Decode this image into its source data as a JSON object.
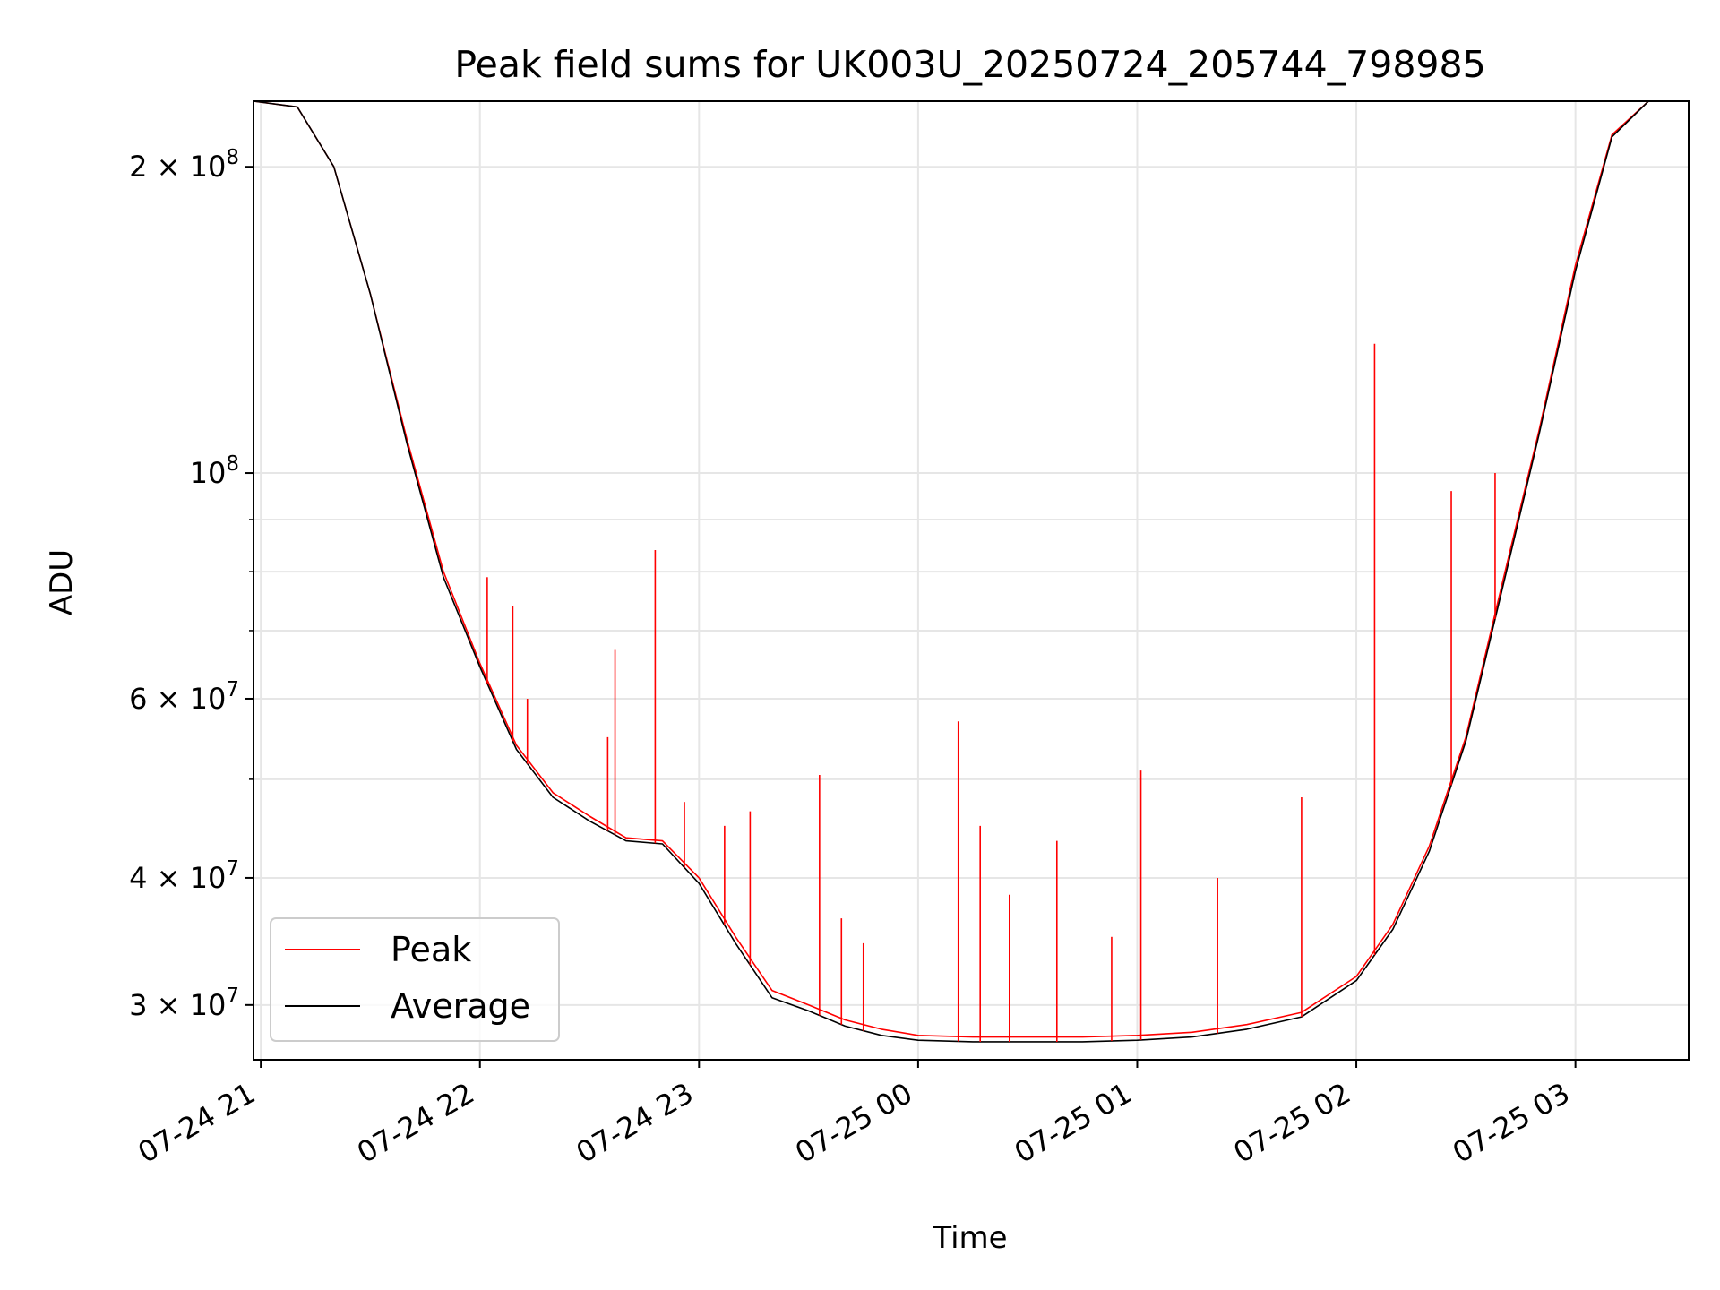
{
  "chart_data": {
    "type": "line",
    "title": "Peak field sums for UK003U_20250724_205744_798985",
    "xlabel": "Time",
    "ylabel": "ADU",
    "yscale": "log",
    "ylim": [
      26500000,
      232000000
    ],
    "xlim": [
      "2025-07-24 20:58",
      "2025-07-25 03:31"
    ],
    "grid": true,
    "legend_position": "lower-left",
    "x_ticks": [
      {
        "label": "07-24 21",
        "value": "2025-07-24 21:00"
      },
      {
        "label": "07-24 22",
        "value": "2025-07-24 22:00"
      },
      {
        "label": "07-24 23",
        "value": "2025-07-24 23:00"
      },
      {
        "label": "07-25 00",
        "value": "2025-07-25 00:00"
      },
      {
        "label": "07-25 01",
        "value": "2025-07-25 01:00"
      },
      {
        "label": "07-25 02",
        "value": "2025-07-25 02:00"
      },
      {
        "label": "07-25 03",
        "value": "2025-07-25 03:00"
      }
    ],
    "y_ticks": [
      {
        "mantissa": "3 × 10",
        "exp": "7",
        "value": 30000000
      },
      {
        "mantissa": "4 × 10",
        "exp": "7",
        "value": 40000000
      },
      {
        "mantissa": "6 × 10",
        "exp": "7",
        "value": 60000000
      },
      {
        "mantissa": "10",
        "exp": "8",
        "value": 100000000
      },
      {
        "mantissa": "2 × 10",
        "exp": "8",
        "value": 200000000
      }
    ],
    "y_minor_ticks": [
      50000000,
      70000000,
      80000000,
      90000000
    ],
    "x": [
      "2025-07-24 20:58",
      "2025-07-24 21:10",
      "2025-07-24 21:20",
      "2025-07-24 21:30",
      "2025-07-24 21:40",
      "2025-07-24 21:50",
      "2025-07-24 22:00",
      "2025-07-24 22:10",
      "2025-07-24 22:20",
      "2025-07-24 22:30",
      "2025-07-24 22:40",
      "2025-07-24 22:50",
      "2025-07-24 23:00",
      "2025-07-24 23:10",
      "2025-07-24 23:20",
      "2025-07-24 23:30",
      "2025-07-24 23:40",
      "2025-07-24 23:50",
      "2025-07-25 00:00",
      "2025-07-25 00:15",
      "2025-07-25 00:30",
      "2025-07-25 00:45",
      "2025-07-25 01:00",
      "2025-07-25 01:15",
      "2025-07-25 01:30",
      "2025-07-25 01:45",
      "2025-07-25 02:00",
      "2025-07-25 02:10",
      "2025-07-25 02:20",
      "2025-07-25 02:30",
      "2025-07-25 02:40",
      "2025-07-25 02:50",
      "2025-07-25 03:00",
      "2025-07-25 03:10",
      "2025-07-25 03:20",
      "2025-07-25 03:31"
    ],
    "series": [
      {
        "name": "Peak",
        "color": "#ff0000",
        "values": [
          232000000,
          229000000,
          200000000,
          150000000,
          108000000,
          80000000,
          65000000,
          54000000,
          48500000,
          46000000,
          43800000,
          43500000,
          40000000,
          35000000,
          31000000,
          30000000,
          29000000,
          28400000,
          28000000,
          27900000,
          27900000,
          27900000,
          28000000,
          28200000,
          28700000,
          29500000,
          32000000,
          36000000,
          43000000,
          55000000,
          78000000,
          110000000,
          160000000,
          215000000,
          232000000,
          232000000
        ],
        "spikes": [
          {
            "x": "2025-07-24 22:02",
            "y": 79000000
          },
          {
            "x": "2025-07-24 22:09",
            "y": 74000000
          },
          {
            "x": "2025-07-24 22:13",
            "y": 60000000
          },
          {
            "x": "2025-07-24 22:35",
            "y": 55000000
          },
          {
            "x": "2025-07-24 22:37",
            "y": 67000000
          },
          {
            "x": "2025-07-24 22:48",
            "y": 84000000
          },
          {
            "x": "2025-07-24 22:56",
            "y": 47500000
          },
          {
            "x": "2025-07-24 23:07",
            "y": 45000000
          },
          {
            "x": "2025-07-24 23:14",
            "y": 46500000
          },
          {
            "x": "2025-07-24 23:33",
            "y": 50500000
          },
          {
            "x": "2025-07-24 23:39",
            "y": 36500000
          },
          {
            "x": "2025-07-24 23:45",
            "y": 34500000
          },
          {
            "x": "2025-07-25 00:11",
            "y": 57000000
          },
          {
            "x": "2025-07-25 00:17",
            "y": 45000000
          },
          {
            "x": "2025-07-25 00:25",
            "y": 38500000
          },
          {
            "x": "2025-07-25 00:38",
            "y": 43500000
          },
          {
            "x": "2025-07-25 00:53",
            "y": 35000000
          },
          {
            "x": "2025-07-25 01:01",
            "y": 51000000
          },
          {
            "x": "2025-07-25 01:22",
            "y": 40000000
          },
          {
            "x": "2025-07-25 01:45",
            "y": 48000000
          },
          {
            "x": "2025-07-25 02:05",
            "y": 134000000
          },
          {
            "x": "2025-07-25 02:26",
            "y": 96000000
          },
          {
            "x": "2025-07-25 02:38",
            "y": 100000000
          }
        ]
      },
      {
        "name": "Average",
        "color": "#000000",
        "values": [
          232000000,
          229000000,
          200000000,
          150000000,
          107000000,
          79000000,
          64500000,
          53500000,
          48000000,
          45500000,
          43500000,
          43200000,
          39500000,
          34500000,
          30500000,
          29600000,
          28600000,
          28000000,
          27700000,
          27600000,
          27600000,
          27600000,
          27700000,
          27900000,
          28400000,
          29200000,
          31700000,
          35600000,
          42500000,
          54500000,
          77000000,
          109000000,
          158000000,
          214000000,
          232000000,
          232000000
        ]
      }
    ]
  }
}
